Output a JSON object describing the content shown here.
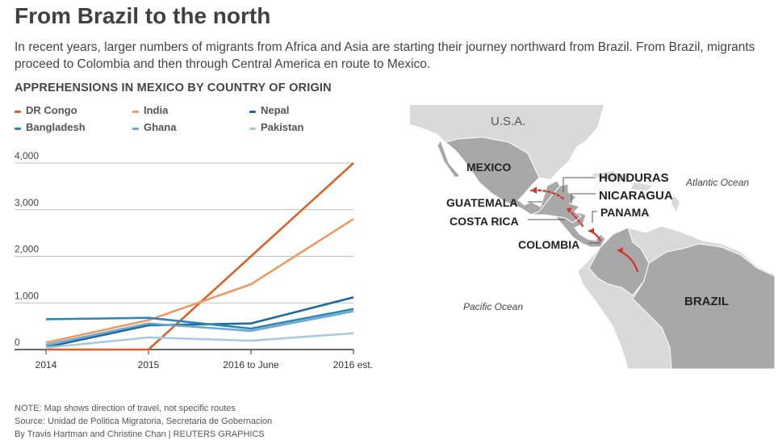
{
  "headline": "From Brazil to the north",
  "intro": "In recent years, larger numbers of migrants from Africa and Asia are starting their journey northward from Brazil. From Brazil, migrants proceed to Colombia and then through Central America en route to Mexico.",
  "chart_title": "APPREHENSIONS IN MEXICO BY COUNTRY OF ORIGIN",
  "chart_data": {
    "type": "line",
    "x": [
      "2014",
      "2015",
      "2016 to June",
      "2016 est."
    ],
    "ylim": [
      0,
      4000
    ],
    "yticks": [
      0,
      1000,
      2000,
      3000,
      4000
    ],
    "ytick_labels": [
      "0",
      "1,000",
      "2,000",
      "3,000",
      "4,000"
    ],
    "grid": true,
    "legend_position": "top",
    "series": [
      {
        "name": "DR Congo",
        "color": "#d9622b",
        "values": [
          0,
          0,
          2000,
          4000
        ]
      },
      {
        "name": "India",
        "color": "#eb9a64",
        "values": [
          150,
          630,
          1400,
          2800
        ]
      },
      {
        "name": "Nepal",
        "color": "#1f6a96",
        "values": [
          50,
          520,
          560,
          1120
        ]
      },
      {
        "name": "Bangladesh",
        "color": "#2c86b6",
        "values": [
          650,
          680,
          450,
          870
        ]
      },
      {
        "name": "Ghana",
        "color": "#6ba9d2",
        "values": [
          100,
          560,
          400,
          820
        ]
      },
      {
        "name": "Pakistan",
        "color": "#a9c9e0",
        "values": [
          40,
          260,
          190,
          350
        ]
      }
    ]
  },
  "map": {
    "labels": {
      "usa": "U.S.A.",
      "mexico": "MEXICO",
      "honduras": "HONDURAS",
      "nicaragua": "NICARAGUA",
      "panama": "PANAMA",
      "guatemala": "GUATEMALA",
      "costa_rica": "COSTA RICA",
      "colombia": "COLOMBIA",
      "brazil": "BRAZIL",
      "atlantic": "Atlantic Ocean",
      "pacific": "Pacific Ocean"
    },
    "colors": {
      "land": "#d9d9d9",
      "route_land": "#a8a8a9",
      "arrow": "#d73027",
      "border": "#ffffff"
    }
  },
  "footer": {
    "note": "NOTE: Map shows direction of travel, not specific routes",
    "source": "Source: Unidad de Politica Migratoria, Secretaria de Gobernacion",
    "credit": "By Travis Hartman and Christine Chan | REUTERS GRAPHICS"
  }
}
